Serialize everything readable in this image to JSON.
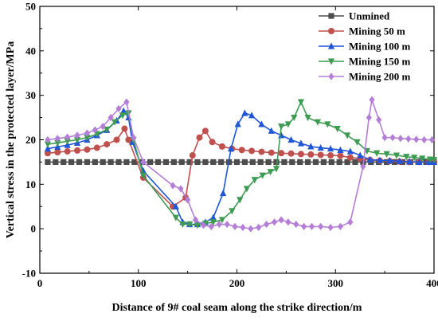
{
  "chart_data": {
    "type": "line",
    "title": "",
    "xlabel": "Distance of 9# coal seam along the strike direction/m",
    "ylabel": "Vertical stress in the protected layer/MPa",
    "xlim": [
      0,
      400
    ],
    "ylim": [
      -10,
      50
    ],
    "xticks": [
      0,
      100,
      200,
      300,
      400
    ],
    "yticks": [
      -10,
      0,
      10,
      20,
      30,
      40,
      50
    ],
    "grid": false,
    "legend_position": "top-right",
    "series": [
      {
        "name": "Unmined",
        "color": "#4d4d4d",
        "marker": "square",
        "points": [
          [
            8,
            15
          ],
          [
            16,
            15
          ],
          [
            24,
            15
          ],
          [
            32,
            15
          ],
          [
            40,
            15
          ],
          [
            48,
            15
          ],
          [
            56,
            15
          ],
          [
            64,
            15
          ],
          [
            72,
            15
          ],
          [
            80,
            15
          ],
          [
            88,
            15
          ],
          [
            96,
            15
          ],
          [
            104,
            15
          ],
          [
            112,
            15
          ],
          [
            120,
            15
          ],
          [
            128,
            15
          ],
          [
            136,
            15
          ],
          [
            144,
            15
          ],
          [
            152,
            15
          ],
          [
            160,
            15
          ],
          [
            168,
            15
          ],
          [
            176,
            15
          ],
          [
            184,
            15
          ],
          [
            192,
            15
          ],
          [
            200,
            15
          ],
          [
            208,
            15
          ],
          [
            216,
            15
          ],
          [
            224,
            15
          ],
          [
            232,
            15
          ],
          [
            240,
            15
          ],
          [
            248,
            15
          ],
          [
            256,
            15
          ],
          [
            264,
            15
          ],
          [
            272,
            15
          ],
          [
            280,
            15
          ],
          [
            288,
            15
          ],
          [
            296,
            15
          ],
          [
            304,
            15
          ],
          [
            312,
            15
          ],
          [
            320,
            15
          ],
          [
            328,
            15
          ],
          [
            336,
            15
          ],
          [
            344,
            15
          ],
          [
            352,
            15
          ],
          [
            360,
            15
          ],
          [
            368,
            15
          ],
          [
            376,
            15
          ],
          [
            384,
            15
          ],
          [
            392,
            15
          ],
          [
            400,
            15
          ]
        ]
      },
      {
        "name": "Mining 50 m",
        "color": "#c0504d",
        "marker": "circle",
        "points": [
          [
            8,
            17
          ],
          [
            18,
            17.2
          ],
          [
            28,
            17.4
          ],
          [
            38,
            17.6
          ],
          [
            48,
            17.8
          ],
          [
            58,
            18.2
          ],
          [
            68,
            19
          ],
          [
            78,
            20
          ],
          [
            86,
            22.5
          ],
          [
            90,
            20
          ],
          [
            105,
            11.5
          ],
          [
            135,
            5
          ],
          [
            148,
            7
          ],
          [
            155,
            16.5
          ],
          [
            162,
            20.5
          ],
          [
            168,
            22
          ],
          [
            175,
            19.5
          ],
          [
            185,
            18.5
          ],
          [
            195,
            18
          ],
          [
            205,
            17.7
          ],
          [
            215,
            17.5
          ],
          [
            225,
            17.3
          ],
          [
            235,
            17.1
          ],
          [
            245,
            17
          ],
          [
            255,
            16.9
          ],
          [
            265,
            16.8
          ],
          [
            275,
            16.7
          ],
          [
            285,
            16.6
          ],
          [
            295,
            16.5
          ],
          [
            305,
            16.4
          ],
          [
            315,
            16
          ],
          [
            325,
            15.8
          ],
          [
            335,
            15.5
          ],
          [
            345,
            15.3
          ],
          [
            355,
            15.2
          ],
          [
            365,
            15.1
          ],
          [
            375,
            15
          ],
          [
            385,
            15
          ],
          [
            395,
            15
          ],
          [
            400,
            15
          ]
        ]
      },
      {
        "name": "Mining 100 m",
        "color": "#1f55d6",
        "marker": "triangle-up",
        "points": [
          [
            8,
            18
          ],
          [
            18,
            18.4
          ],
          [
            28,
            18.8
          ],
          [
            38,
            19.3
          ],
          [
            48,
            20
          ],
          [
            58,
            21
          ],
          [
            68,
            22.2
          ],
          [
            78,
            24.3
          ],
          [
            85,
            26.5
          ],
          [
            90,
            25
          ],
          [
            94,
            19.5
          ],
          [
            105,
            13
          ],
          [
            138,
            5
          ],
          [
            145,
            1.5
          ],
          [
            152,
            1
          ],
          [
            160,
            1
          ],
          [
            168,
            1.5
          ],
          [
            176,
            2.5
          ],
          [
            186,
            8
          ],
          [
            194,
            18
          ],
          [
            201,
            23.5
          ],
          [
            208,
            26
          ],
          [
            215,
            25.5
          ],
          [
            225,
            23.5
          ],
          [
            235,
            22
          ],
          [
            245,
            21
          ],
          [
            255,
            20
          ],
          [
            265,
            19.2
          ],
          [
            275,
            18.5
          ],
          [
            285,
            18.2
          ],
          [
            295,
            18
          ],
          [
            305,
            17.7
          ],
          [
            315,
            17.4
          ],
          [
            325,
            16.5
          ],
          [
            335,
            15.5
          ],
          [
            345,
            15.4
          ],
          [
            355,
            15.3
          ],
          [
            365,
            15.2
          ],
          [
            375,
            15.1
          ],
          [
            385,
            15
          ],
          [
            395,
            15
          ],
          [
            400,
            15
          ]
        ]
      },
      {
        "name": "Mining 150 m",
        "color": "#3d9b52",
        "marker": "triangle-down",
        "points": [
          [
            8,
            19
          ],
          [
            18,
            19.3
          ],
          [
            28,
            19.7
          ],
          [
            38,
            20
          ],
          [
            48,
            20.5
          ],
          [
            58,
            21.3
          ],
          [
            68,
            22.3
          ],
          [
            76,
            24
          ],
          [
            84,
            25.5
          ],
          [
            90,
            26
          ],
          [
            95,
            20
          ],
          [
            105,
            12
          ],
          [
            138,
            2.5
          ],
          [
            145,
            1
          ],
          [
            152,
            1
          ],
          [
            160,
            0.8
          ],
          [
            168,
            1.2
          ],
          [
            176,
            1.5
          ],
          [
            185,
            2
          ],
          [
            195,
            4
          ],
          [
            203,
            6.5
          ],
          [
            210,
            9
          ],
          [
            218,
            11
          ],
          [
            226,
            12
          ],
          [
            234,
            12.8
          ],
          [
            240,
            13.5
          ],
          [
            245,
            23
          ],
          [
            252,
            23.5
          ],
          [
            258,
            25
          ],
          [
            265,
            28.5
          ],
          [
            272,
            25
          ],
          [
            282,
            24
          ],
          [
            292,
            23.5
          ],
          [
            302,
            22.5
          ],
          [
            312,
            21
          ],
          [
            322,
            19.5
          ],
          [
            332,
            17.5
          ],
          [
            342,
            17
          ],
          [
            352,
            16.8
          ],
          [
            362,
            16.5
          ],
          [
            372,
            16.2
          ],
          [
            380,
            16
          ],
          [
            388,
            15.8
          ],
          [
            396,
            15.6
          ],
          [
            400,
            15.5
          ]
        ]
      },
      {
        "name": "Mining 200 m",
        "color": "#b57ed6",
        "marker": "diamond",
        "points": [
          [
            8,
            20
          ],
          [
            18,
            20.3
          ],
          [
            28,
            20.6
          ],
          [
            38,
            21
          ],
          [
            48,
            21.5
          ],
          [
            56,
            22.2
          ],
          [
            64,
            23
          ],
          [
            72,
            25
          ],
          [
            80,
            27
          ],
          [
            88,
            28.5
          ],
          [
            95,
            20.5
          ],
          [
            105,
            15
          ],
          [
            135,
            9.7
          ],
          [
            143,
            9
          ],
          [
            150,
            6.5
          ],
          [
            158,
            2
          ],
          [
            166,
            0.8
          ],
          [
            174,
            0.5
          ],
          [
            182,
            1
          ],
          [
            190,
            1
          ],
          [
            198,
            0.5
          ],
          [
            206,
            0.3
          ],
          [
            214,
            0
          ],
          [
            222,
            0.3
          ],
          [
            230,
            1
          ],
          [
            238,
            1.5
          ],
          [
            245,
            2
          ],
          [
            252,
            1.5
          ],
          [
            260,
            1
          ],
          [
            268,
            0.5
          ],
          [
            276,
            0.5
          ],
          [
            285,
            0.5
          ],
          [
            295,
            0.3
          ],
          [
            305,
            0.5
          ],
          [
            315,
            1.5
          ],
          [
            328,
            14
          ],
          [
            334,
            25
          ],
          [
            337,
            29
          ],
          [
            344,
            24.5
          ],
          [
            350,
            20.5
          ],
          [
            358,
            20.5
          ],
          [
            366,
            20.3
          ],
          [
            374,
            20.2
          ],
          [
            382,
            20.1
          ],
          [
            390,
            20
          ],
          [
            398,
            20
          ]
        ]
      }
    ]
  }
}
